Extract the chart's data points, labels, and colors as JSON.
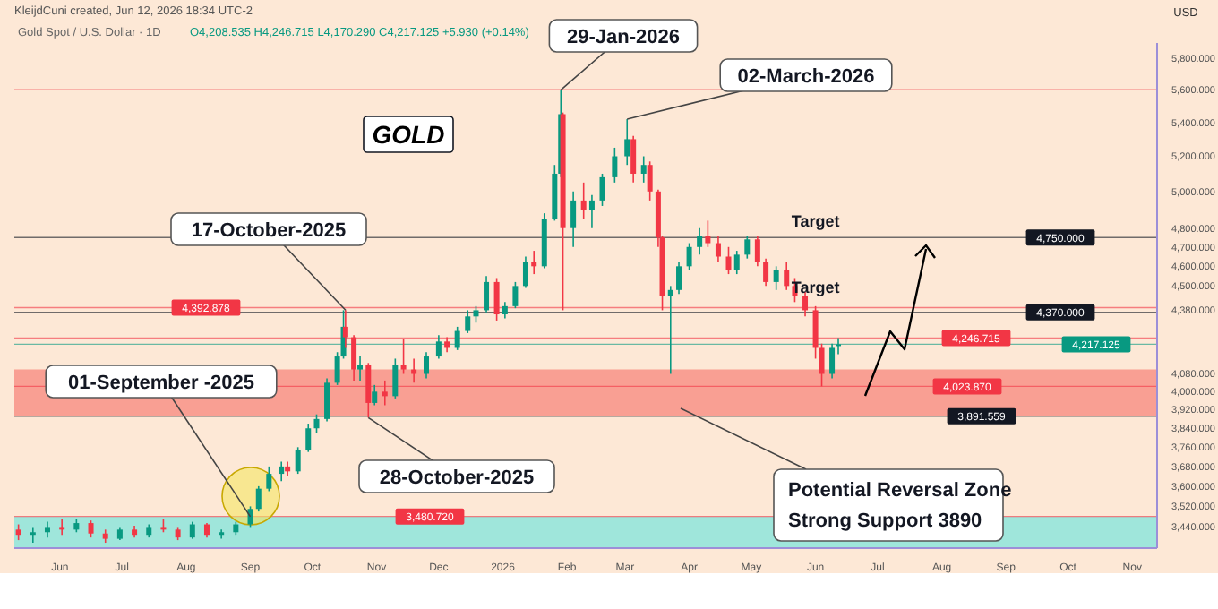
{
  "chart_data": {
    "type": "candlestick",
    "title": "Gold Spot / U.S. Dollar · 1D",
    "subtitle": "O4,208.535 H4,246.715 L4,170.290 C4,217.125 +5.930 (+0.14%)",
    "ylabel": "USD",
    "annotations": [
      "KleijdCuni created, Jun 12, 2026 18:34 UTC-2",
      "GOLD",
      {
        "text": "29-Jan-2026",
        "x": "2026-01-29",
        "y": 5600
      },
      {
        "text": "02-March-2026",
        "x": "2026-03-02",
        "y": 5420
      },
      {
        "text": "17-October-2025",
        "x": "2025-10-17",
        "y": 4381
      },
      {
        "text": "28-October-2025",
        "x": "2025-10-28",
        "y": 3886
      },
      {
        "text": "01-September -2025",
        "x": "2025-09-01",
        "y": 3480
      },
      {
        "text": "Target",
        "x": "2026-06-01",
        "y": 4750
      },
      {
        "text": "Target",
        "x": "2026-06-01",
        "y": 4370
      },
      "Potential Reversal Zone",
      "Strong Support 3890"
    ],
    "x": [
      "2025-05-12",
      "2025-05-19",
      "2025-05-26",
      "2025-06-02",
      "2025-06-09",
      "2025-06-16",
      "2025-06-23",
      "2025-06-30",
      "2025-07-07",
      "2025-07-14",
      "2025-07-21",
      "2025-07-28",
      "2025-08-04",
      "2025-08-11",
      "2025-08-18",
      "2025-08-25",
      "2025-09-01",
      "2025-09-05",
      "2025-09-10",
      "2025-09-16",
      "2025-09-19",
      "2025-09-24",
      "2025-09-29",
      "2025-10-03",
      "2025-10-08",
      "2025-10-13",
      "2025-10-16",
      "2025-10-17",
      "2025-10-21",
      "2025-10-24",
      "2025-10-28",
      "2025-10-31",
      "2025-11-05",
      "2025-11-10",
      "2025-11-14",
      "2025-11-19",
      "2025-11-25",
      "2025-12-01",
      "2025-12-05",
      "2025-12-10",
      "2025-12-15",
      "2025-12-19",
      "2025-12-24",
      "2025-12-29",
      "2026-01-02",
      "2026-01-07",
      "2026-01-12",
      "2026-01-16",
      "2026-01-21",
      "2026-01-26",
      "2026-01-29",
      "2026-01-30",
      "2026-02-04",
      "2026-02-09",
      "2026-02-13",
      "2026-02-18",
      "2026-02-24",
      "2026-03-02",
      "2026-03-05",
      "2026-03-10",
      "2026-03-13",
      "2026-03-17",
      "2026-03-19",
      "2026-03-23",
      "2026-03-27",
      "2026-04-01",
      "2026-04-06",
      "2026-04-10",
      "2026-04-15",
      "2026-04-20",
      "2026-04-24",
      "2026-04-29",
      "2026-05-04",
      "2026-05-08",
      "2026-05-13",
      "2026-05-18",
      "2026-05-22",
      "2026-05-27",
      "2026-06-01",
      "2026-06-04",
      "2026-06-09",
      "2026-06-12"
    ],
    "ohlc": [
      [
        3430,
        3450,
        3390,
        3410
      ],
      [
        3410,
        3440,
        3380,
        3420
      ],
      [
        3420,
        3460,
        3400,
        3440
      ],
      [
        3440,
        3470,
        3410,
        3430
      ],
      [
        3430,
        3470,
        3420,
        3455
      ],
      [
        3455,
        3465,
        3400,
        3415
      ],
      [
        3415,
        3430,
        3380,
        3395
      ],
      [
        3395,
        3440,
        3390,
        3430
      ],
      [
        3430,
        3445,
        3400,
        3410
      ],
      [
        3410,
        3450,
        3400,
        3440
      ],
      [
        3440,
        3470,
        3420,
        3430
      ],
      [
        3430,
        3440,
        3390,
        3400
      ],
      [
        3400,
        3460,
        3395,
        3450
      ],
      [
        3450,
        3455,
        3400,
        3410
      ],
      [
        3410,
        3430,
        3395,
        3420
      ],
      [
        3420,
        3460,
        3410,
        3450
      ],
      [
        3450,
        3520,
        3440,
        3510
      ],
      [
        3510,
        3600,
        3500,
        3590
      ],
      [
        3590,
        3680,
        3580,
        3650
      ],
      [
        3650,
        3700,
        3620,
        3680
      ],
      [
        3680,
        3700,
        3640,
        3660
      ],
      [
        3660,
        3760,
        3650,
        3750
      ],
      [
        3750,
        3860,
        3740,
        3840
      ],
      [
        3840,
        3900,
        3820,
        3880
      ],
      [
        3880,
        4060,
        3870,
        4040
      ],
      [
        4040,
        4180,
        4030,
        4160
      ],
      [
        4160,
        4380,
        4150,
        4300
      ],
      [
        4300,
        4381,
        4200,
        4250
      ],
      [
        4250,
        4260,
        4050,
        4100
      ],
      [
        4100,
        4160,
        4050,
        4120
      ],
      [
        4120,
        4130,
        3886,
        3950
      ],
      [
        3950,
        4030,
        3940,
        4000
      ],
      [
        4000,
        4050,
        3940,
        3980
      ],
      [
        3980,
        4150,
        3970,
        4120
      ],
      [
        4120,
        4240,
        4080,
        4100
      ],
      [
        4100,
        4150,
        4040,
        4080
      ],
      [
        4080,
        4180,
        4060,
        4160
      ],
      [
        4160,
        4260,
        4150,
        4230
      ],
      [
        4230,
        4250,
        4180,
        4200
      ],
      [
        4200,
        4300,
        4190,
        4280
      ],
      [
        4280,
        4380,
        4270,
        4350
      ],
      [
        4350,
        4400,
        4320,
        4380
      ],
      [
        4380,
        4550,
        4370,
        4520
      ],
      [
        4520,
        4540,
        4330,
        4360
      ],
      [
        4360,
        4420,
        4340,
        4400
      ],
      [
        4400,
        4520,
        4390,
        4500
      ],
      [
        4500,
        4650,
        4490,
        4620
      ],
      [
        4620,
        4680,
        4560,
        4600
      ],
      [
        4600,
        4880,
        4590,
        4850
      ],
      [
        4850,
        5150,
        4840,
        5100
      ],
      [
        5100,
        5600,
        5080,
        5450
      ],
      [
        5450,
        5460,
        4380,
        4800
      ],
      [
        4800,
        5000,
        4700,
        4950
      ],
      [
        4950,
        5050,
        4850,
        4900
      ],
      [
        4900,
        4980,
        4800,
        4950
      ],
      [
        4950,
        5100,
        4920,
        5080
      ],
      [
        5080,
        5250,
        5050,
        5200
      ],
      [
        5200,
        5420,
        5150,
        5300
      ],
      [
        5300,
        5320,
        5050,
        5100
      ],
      [
        5100,
        5200,
        5050,
        5150
      ],
      [
        5150,
        5170,
        4950,
        5000
      ],
      [
        5000,
        5010,
        4700,
        4750
      ],
      [
        4750,
        4760,
        4380,
        4450
      ],
      [
        4450,
        4500,
        4080,
        4480
      ],
      [
        4480,
        4620,
        4460,
        4600
      ],
      [
        4600,
        4720,
        4580,
        4700
      ],
      [
        4700,
        4800,
        4660,
        4760
      ],
      [
        4760,
        4840,
        4700,
        4720
      ],
      [
        4720,
        4760,
        4620,
        4650
      ],
      [
        4650,
        4700,
        4560,
        4580
      ],
      [
        4580,
        4680,
        4560,
        4660
      ],
      [
        4660,
        4760,
        4640,
        4740
      ],
      [
        4740,
        4760,
        4600,
        4620
      ],
      [
        4620,
        4640,
        4500,
        4520
      ],
      [
        4520,
        4600,
        4480,
        4580
      ],
      [
        4580,
        4620,
        4480,
        4500
      ],
      [
        4500,
        4540,
        4420,
        4450
      ],
      [
        4450,
        4470,
        4350,
        4380
      ],
      [
        4380,
        4400,
        4150,
        4200
      ],
      [
        4200,
        4220,
        4023.87,
        4080
      ],
      [
        4080,
        4220,
        4060,
        4200
      ],
      [
        4208.535,
        4246.715,
        4170.29,
        4217.125
      ]
    ],
    "xlim": [
      "2025-05-10",
      "2026-11-13"
    ],
    "ylim": [
      3360,
      5900
    ],
    "log": true,
    "xticks": [
      {
        "value": "2025-06-01",
        "label": "Jun"
      },
      {
        "value": "2025-07-01",
        "label": "Jul"
      },
      {
        "value": "2025-08-01",
        "label": "Aug"
      },
      {
        "value": "2025-09-01",
        "label": "Sep"
      },
      {
        "value": "2025-10-01",
        "label": "Oct"
      },
      {
        "value": "2025-11-01",
        "label": "Nov"
      },
      {
        "value": "2025-12-01",
        "label": "Dec"
      },
      {
        "value": "2026-01-01",
        "label": "2026"
      },
      {
        "value": "2026-02-01",
        "label": "Feb"
      },
      {
        "value": "2026-03-01",
        "label": "Mar"
      },
      {
        "value": "2026-04-01",
        "label": "Apr"
      },
      {
        "value": "2026-05-01",
        "label": "May"
      },
      {
        "value": "2026-06-01",
        "label": "Jun"
      },
      {
        "value": "2026-07-01",
        "label": "Jul"
      },
      {
        "value": "2026-08-01",
        "label": "Aug"
      },
      {
        "value": "2026-09-01",
        "label": "Sep"
      },
      {
        "value": "2026-10-01",
        "label": "Oct"
      },
      {
        "value": "2026-11-01",
        "label": "Nov"
      }
    ],
    "yticks": [
      {
        "value": 3440,
        "label": "3,440.000"
      },
      {
        "value": 3520,
        "label": "3,520.000"
      },
      {
        "value": 3600,
        "label": "3,600.000"
      },
      {
        "value": 3680,
        "label": "3,680.000"
      },
      {
        "value": 3760,
        "label": "3,760.000"
      },
      {
        "value": 3840,
        "label": "3,840.000"
      },
      {
        "value": 3920,
        "label": "3,920.000"
      },
      {
        "value": 4000,
        "label": "4,000.000"
      },
      {
        "value": 4080,
        "label": "4,080.000"
      },
      {
        "value": 4380,
        "label": "4,380.000"
      },
      {
        "value": 4500,
        "label": "4,500.000"
      },
      {
        "value": 4600,
        "label": "4,600.000"
      },
      {
        "value": 4700,
        "label": "4,700.000"
      },
      {
        "value": 4800,
        "label": "4,800.000"
      },
      {
        "value": 5000,
        "label": "5,000.000"
      },
      {
        "value": 5200,
        "label": "5,200.000"
      },
      {
        "value": 5400,
        "label": "5,400.000"
      },
      {
        "value": 5600,
        "label": "5,600.000"
      },
      {
        "value": 5800,
        "label": "5,800.000"
      }
    ],
    "ref_lines": [
      {
        "axis": "y",
        "value": 5600,
        "color": "#f23645"
      },
      {
        "axis": "y",
        "value": 4392.878,
        "label": "4,392.878",
        "color": "#f23645"
      },
      {
        "axis": "y",
        "value": 4750,
        "label": "4,750.000",
        "color": "#131722"
      },
      {
        "axis": "y",
        "value": 4370,
        "label": "4,370.000",
        "color": "#131722"
      },
      {
        "axis": "y",
        "value": 4246.715,
        "label": "4,246.715",
        "color": "#f23645"
      },
      {
        "axis": "y",
        "value": 4217.125,
        "label": "4,217.125",
        "color": "#089981"
      },
      {
        "axis": "y",
        "value": 4023.87,
        "label": "4,023.870",
        "color": "#f23645"
      },
      {
        "axis": "y",
        "value": 3891.559,
        "label": "3,891.559",
        "color": "#131722"
      },
      {
        "axis": "y",
        "value": 3480.72,
        "label": "3,480.720",
        "color": "#f23645"
      }
    ],
    "bands": [
      {
        "axis": "y",
        "from": 3891.559,
        "to": 4100,
        "color": "#f7877c"
      },
      {
        "axis": "y",
        "from": 3360,
        "to": 3480.72,
        "color": "#7fe6dc"
      }
    ]
  }
}
